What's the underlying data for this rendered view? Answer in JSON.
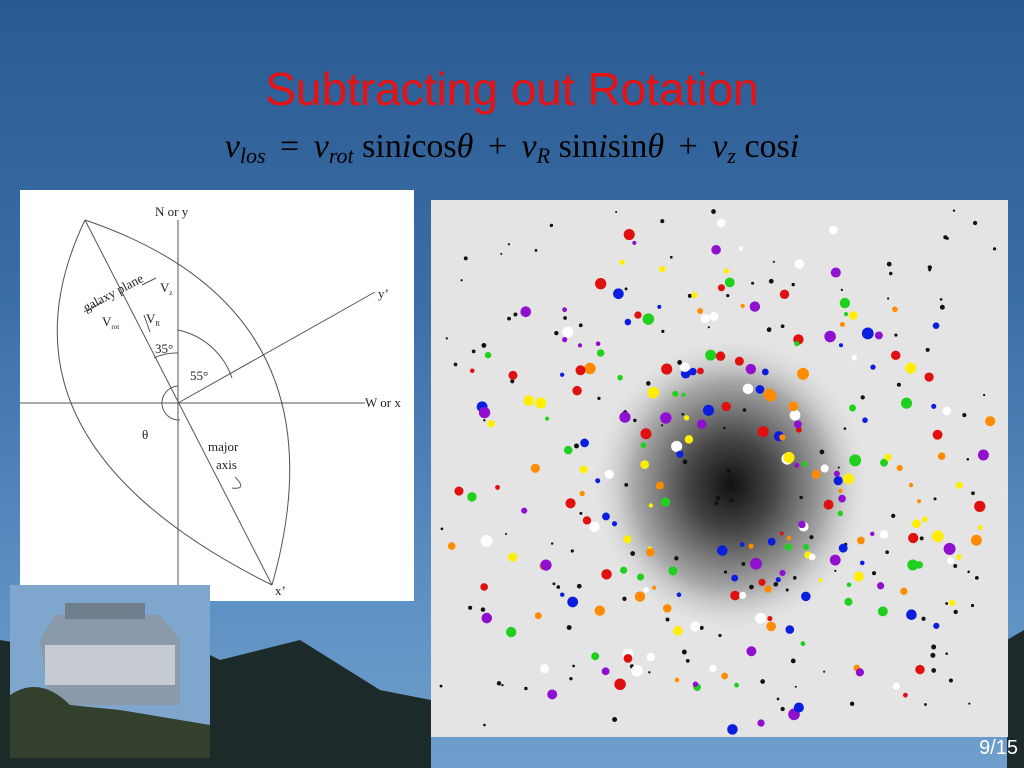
{
  "slide": {
    "title": "Subtracting out Rotation",
    "equation": [
      "v",
      "los",
      "=",
      "v",
      "rot",
      "sin",
      "i",
      "cos",
      "θ",
      "+",
      "v",
      "R",
      "sin",
      "i",
      "sin",
      "θ",
      "+",
      "v",
      "z",
      "cos",
      "i"
    ],
    "diagram": {
      "north_label": "N or y",
      "y_prime_label": "y’",
      "west_label": "W or x",
      "x_prime_label": "x’",
      "galaxy_plane_label": "galaxy plane",
      "vz_label": "V",
      "vz_sub": "z",
      "vrot_label": "V",
      "vrot_sub": "rot",
      "vr_label": "V",
      "vr_sub": "R",
      "angle_35": "35°",
      "angle_55": "55°",
      "theta_label": "θ",
      "major_label": "major",
      "axis_label": "axis"
    },
    "page_number": "9/15"
  }
}
